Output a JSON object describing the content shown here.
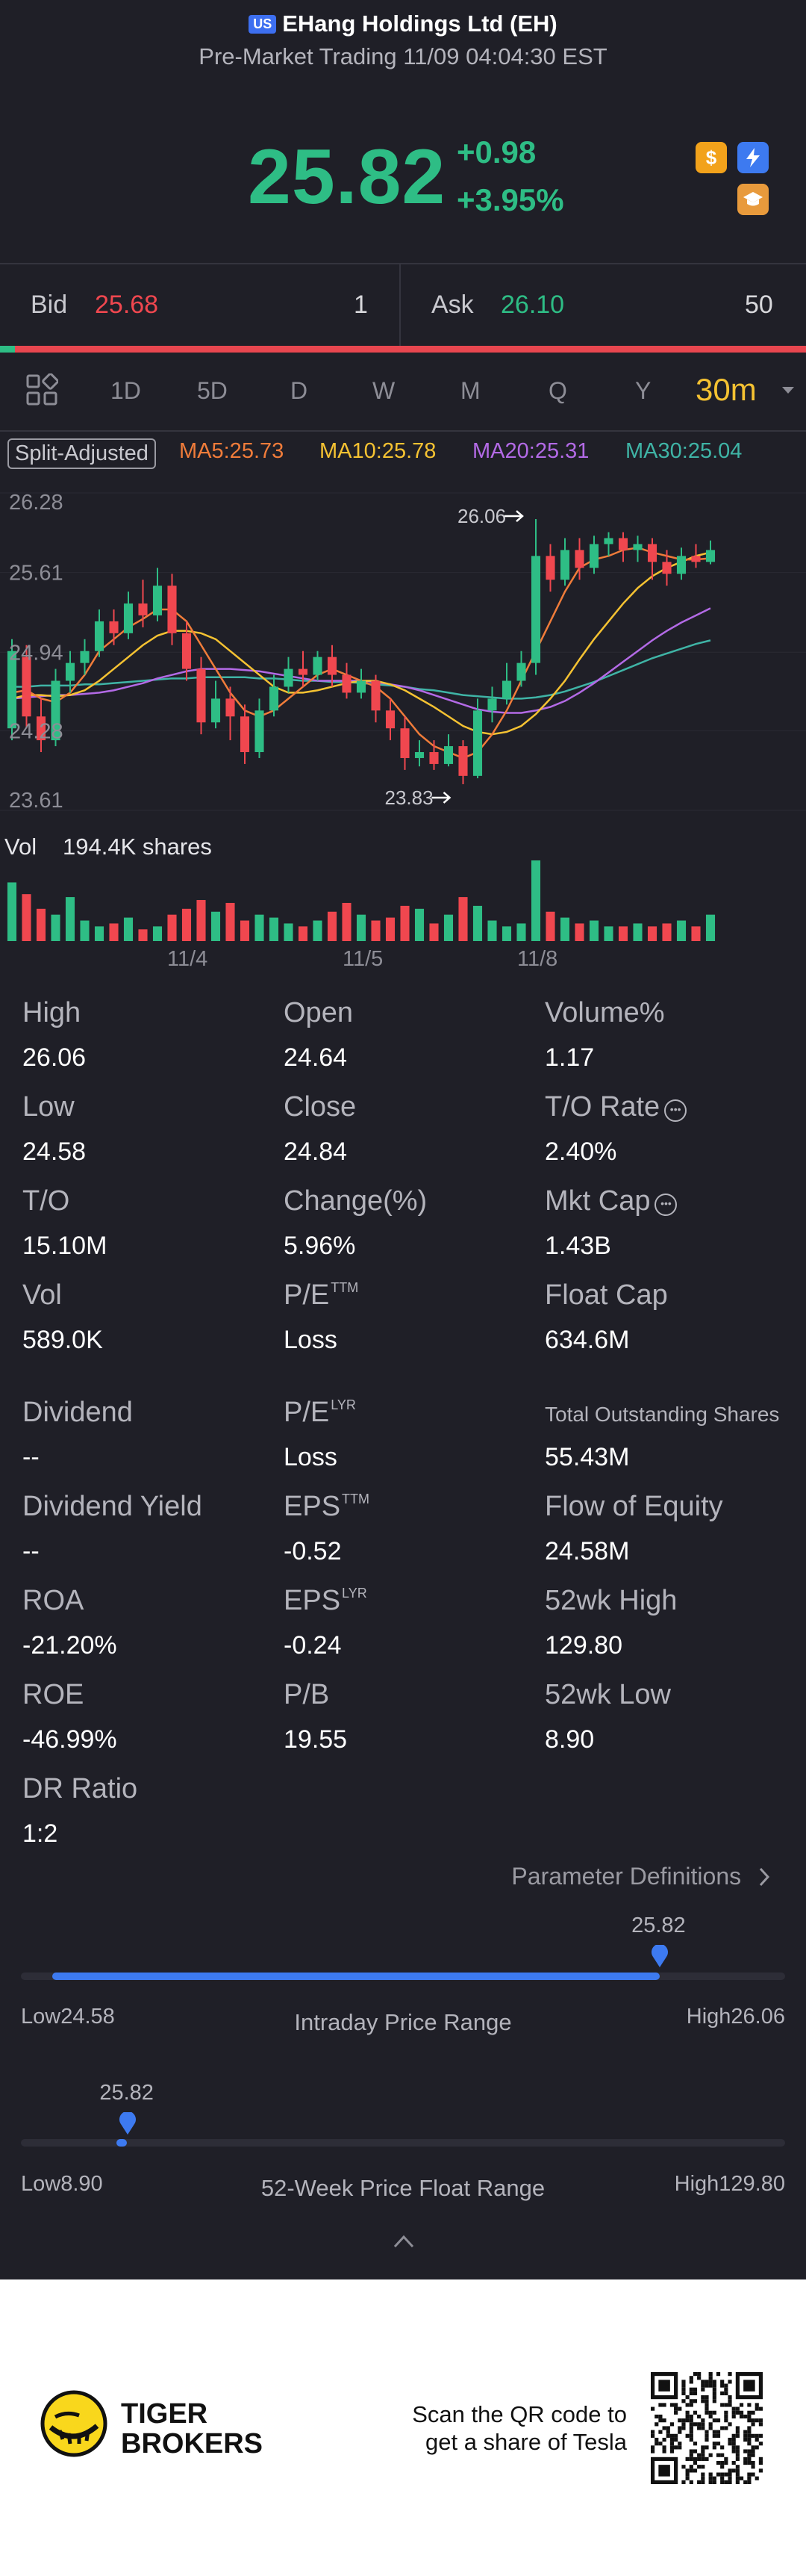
{
  "header": {
    "market_badge": "US",
    "title": "EHang Holdings Ltd (EH)",
    "subtitle": "Pre-Market Trading 11/09 04:04:30 EST"
  },
  "quote": {
    "price": "25.82",
    "change": "+0.98",
    "change_pct": "+3.95%",
    "up_color": "#2ebd85",
    "down_color": "#f0474f"
  },
  "badges": [
    {
      "icon": "dollar-icon",
      "glyph": "$",
      "color": "#f2a21b"
    },
    {
      "icon": "lightning-icon",
      "glyph": "⚡",
      "color": "#3d7af0"
    },
    {
      "icon": "education-icon",
      "glyph": "▲",
      "color": "#e89a3c"
    }
  ],
  "orderbook": {
    "bid_label": "Bid",
    "bid_price": "25.68",
    "bid_qty": "1",
    "ask_label": "Ask",
    "ask_price": "26.10",
    "ask_qty": "50"
  },
  "tabs": [
    "1D",
    "5D",
    "D",
    "W",
    "M",
    "Q",
    "Y"
  ],
  "active_tab": "30m",
  "chart_toolbar": {
    "split_label": "Split-Adjusted",
    "ma5": "MA5:25.73",
    "ma10": "MA10:25.78",
    "ma20": "MA20:25.31",
    "ma30": "MA30:25.04",
    "ma5_color": "#f07c3a",
    "ma10_color": "#f5c232",
    "ma20_color": "#b36ae6",
    "ma30_color": "#3fb4a6"
  },
  "chart_data": {
    "type": "candlestick",
    "y_ticks": [
      "26.28",
      "25.61",
      "24.94",
      "24.28",
      "23.61"
    ],
    "ylim": [
      23.61,
      26.28
    ],
    "x_ticks": [
      "11/4",
      "11/5",
      "11/8"
    ],
    "high_annotation": "26.06",
    "low_annotation": "23.83",
    "volume_label": "Vol",
    "volume_value": "194.4K shares",
    "candles": [
      {
        "o": 24.3,
        "c": 24.95,
        "h": 25.05,
        "l": 24.2
      },
      {
        "o": 24.9,
        "c": 24.4,
        "h": 25.0,
        "l": 24.3
      },
      {
        "o": 24.4,
        "c": 24.2,
        "h": 24.55,
        "l": 24.1
      },
      {
        "o": 24.2,
        "c": 24.7,
        "h": 24.8,
        "l": 24.15
      },
      {
        "o": 24.7,
        "c": 24.85,
        "h": 24.95,
        "l": 24.6
      },
      {
        "o": 24.85,
        "c": 24.95,
        "h": 25.05,
        "l": 24.75
      },
      {
        "o": 24.95,
        "c": 25.2,
        "h": 25.3,
        "l": 24.9
      },
      {
        "o": 25.2,
        "c": 25.1,
        "h": 25.3,
        "l": 25.0
      },
      {
        "o": 25.1,
        "c": 25.35,
        "h": 25.45,
        "l": 25.05
      },
      {
        "o": 25.35,
        "c": 25.25,
        "h": 25.55,
        "l": 25.15
      },
      {
        "o": 25.25,
        "c": 25.5,
        "h": 25.65,
        "l": 25.2
      },
      {
        "o": 25.5,
        "c": 25.1,
        "h": 25.6,
        "l": 25.0
      },
      {
        "o": 25.1,
        "c": 24.8,
        "h": 25.2,
        "l": 24.7
      },
      {
        "o": 24.8,
        "c": 24.35,
        "h": 24.9,
        "l": 24.25
      },
      {
        "o": 24.35,
        "c": 24.55,
        "h": 24.7,
        "l": 24.3
      },
      {
        "o": 24.55,
        "c": 24.4,
        "h": 24.65,
        "l": 24.2
      },
      {
        "o": 24.4,
        "c": 24.1,
        "h": 24.5,
        "l": 24.0
      },
      {
        "o": 24.1,
        "c": 24.45,
        "h": 24.55,
        "l": 24.05
      },
      {
        "o": 24.45,
        "c": 24.65,
        "h": 24.75,
        "l": 24.4
      },
      {
        "o": 24.65,
        "c": 24.8,
        "h": 24.9,
        "l": 24.6
      },
      {
        "o": 24.8,
        "c": 24.75,
        "h": 24.95,
        "l": 24.65
      },
      {
        "o": 24.75,
        "c": 24.9,
        "h": 24.95,
        "l": 24.7
      },
      {
        "o": 24.9,
        "c": 24.75,
        "h": 25.0,
        "l": 24.65
      },
      {
        "o": 24.75,
        "c": 24.6,
        "h": 24.85,
        "l": 24.55
      },
      {
        "o": 24.6,
        "c": 24.7,
        "h": 24.8,
        "l": 24.55
      },
      {
        "o": 24.7,
        "c": 24.45,
        "h": 24.75,
        "l": 24.35
      },
      {
        "o": 24.45,
        "c": 24.3,
        "h": 24.55,
        "l": 24.2
      },
      {
        "o": 24.3,
        "c": 24.05,
        "h": 24.4,
        "l": 23.95
      },
      {
        "o": 24.05,
        "c": 24.1,
        "h": 24.2,
        "l": 23.98
      },
      {
        "o": 24.1,
        "c": 24.0,
        "h": 24.2,
        "l": 23.95
      },
      {
        "o": 24.0,
        "c": 24.15,
        "h": 24.25,
        "l": 23.98
      },
      {
        "o": 24.15,
        "c": 23.9,
        "h": 24.2,
        "l": 23.83
      },
      {
        "o": 23.9,
        "c": 24.45,
        "h": 24.55,
        "l": 23.88
      },
      {
        "o": 24.45,
        "c": 24.55,
        "h": 24.65,
        "l": 24.35
      },
      {
        "o": 24.55,
        "c": 24.7,
        "h": 24.85,
        "l": 24.5
      },
      {
        "o": 24.7,
        "c": 24.85,
        "h": 24.95,
        "l": 24.65
      },
      {
        "o": 24.85,
        "c": 25.75,
        "h": 26.06,
        "l": 24.75
      },
      {
        "o": 25.75,
        "c": 25.55,
        "h": 25.85,
        "l": 25.45
      },
      {
        "o": 25.55,
        "c": 25.8,
        "h": 25.9,
        "l": 25.5
      },
      {
        "o": 25.8,
        "c": 25.65,
        "h": 25.9,
        "l": 25.55
      },
      {
        "o": 25.65,
        "c": 25.85,
        "h": 25.92,
        "l": 25.6
      },
      {
        "o": 25.85,
        "c": 25.9,
        "h": 25.95,
        "l": 25.75
      },
      {
        "o": 25.9,
        "c": 25.8,
        "h": 25.95,
        "l": 25.7
      },
      {
        "o": 25.8,
        "c": 25.85,
        "h": 25.92,
        "l": 25.7
      },
      {
        "o": 25.85,
        "c": 25.7,
        "h": 25.9,
        "l": 25.55
      },
      {
        "o": 25.7,
        "c": 25.6,
        "h": 25.8,
        "l": 25.5
      },
      {
        "o": 25.6,
        "c": 25.75,
        "h": 25.82,
        "l": 25.55
      },
      {
        "o": 25.75,
        "c": 25.7,
        "h": 25.85,
        "l": 25.65
      },
      {
        "o": 25.7,
        "c": 25.8,
        "h": 25.88,
        "l": 25.68
      }
    ],
    "ma5": [
      24.6,
      24.62,
      24.55,
      24.52,
      24.6,
      24.75,
      24.95,
      25.05,
      25.15,
      25.22,
      25.3,
      25.3,
      25.2,
      25.0,
      24.8,
      24.6,
      24.45,
      24.4,
      24.45,
      24.55,
      24.65,
      24.75,
      24.8,
      24.75,
      24.7,
      24.65,
      24.55,
      24.4,
      24.25,
      24.15,
      24.1,
      24.05,
      24.1,
      24.25,
      24.45,
      24.7,
      24.95,
      25.2,
      25.45,
      25.65,
      25.72,
      25.75,
      25.8,
      25.82,
      25.78,
      25.75,
      25.72,
      25.72,
      25.73
    ],
    "ma10": [
      24.55,
      24.58,
      24.58,
      24.57,
      24.58,
      24.62,
      24.7,
      24.8,
      24.9,
      25.0,
      25.08,
      25.12,
      25.12,
      25.1,
      25.05,
      24.95,
      24.85,
      24.75,
      24.65,
      24.6,
      24.6,
      24.62,
      24.65,
      24.68,
      24.7,
      24.7,
      24.67,
      24.62,
      24.55,
      24.48,
      24.4,
      24.32,
      24.27,
      24.25,
      24.27,
      24.32,
      24.42,
      24.55,
      24.7,
      24.88,
      25.05,
      25.2,
      25.35,
      25.48,
      25.58,
      25.65,
      25.7,
      25.75,
      25.78
    ],
    "ma20": [
      24.55,
      24.56,
      24.57,
      24.58,
      24.58,
      24.59,
      24.6,
      24.62,
      24.65,
      24.68,
      24.72,
      24.75,
      24.78,
      24.8,
      24.8,
      24.8,
      24.79,
      24.78,
      24.76,
      24.74,
      24.72,
      24.7,
      24.7,
      24.7,
      24.7,
      24.69,
      24.67,
      24.65,
      24.62,
      24.58,
      24.54,
      24.5,
      24.46,
      24.44,
      24.43,
      24.43,
      24.45,
      24.48,
      24.53,
      24.6,
      24.68,
      24.77,
      24.86,
      24.95,
      25.04,
      25.12,
      25.19,
      25.25,
      25.31
    ],
    "ma30": [
      24.65,
      24.65,
      24.66,
      24.66,
      24.66,
      24.67,
      24.67,
      24.68,
      24.69,
      24.7,
      24.71,
      24.72,
      24.72,
      24.73,
      24.73,
      24.73,
      24.73,
      24.72,
      24.72,
      24.71,
      24.7,
      24.7,
      24.69,
      24.69,
      24.68,
      24.67,
      24.66,
      24.65,
      24.63,
      24.62,
      24.6,
      24.58,
      24.57,
      24.56,
      24.55,
      24.55,
      24.56,
      24.58,
      24.61,
      24.65,
      24.69,
      24.74,
      24.79,
      24.84,
      24.89,
      24.93,
      24.97,
      25.01,
      25.04
    ],
    "volumes": [
      40,
      32,
      22,
      18,
      30,
      14,
      10,
      12,
      16,
      8,
      10,
      18,
      22,
      28,
      20,
      26,
      14,
      18,
      16,
      12,
      10,
      14,
      20,
      26,
      18,
      14,
      16,
      24,
      22,
      12,
      18,
      30,
      24,
      14,
      10,
      12,
      55,
      20,
      16,
      12,
      14,
      10,
      10,
      12,
      10,
      12,
      14,
      10,
      18
    ]
  },
  "stats": [
    {
      "label": "High",
      "value": "26.06"
    },
    {
      "label": "Open",
      "value": "24.64"
    },
    {
      "label": "Volume%",
      "value": "1.17"
    },
    {
      "label": "Low",
      "value": "24.58"
    },
    {
      "label": "Close",
      "value": "24.84"
    },
    {
      "label": "T/O Rate",
      "value": "2.40%"
    },
    {
      "label": "T/O",
      "value": "15.10M"
    },
    {
      "label": "Change(%)",
      "value": "5.96%"
    },
    {
      "label": "Mkt Cap",
      "value": "1.43B"
    },
    {
      "label": "Vol",
      "value": "589.0K"
    },
    {
      "label": "P/E",
      "sup": "TTM",
      "value": "Loss"
    },
    {
      "label": "Float Cap",
      "value": "634.6M"
    },
    {
      "label": "Dividend",
      "value": "--"
    },
    {
      "label": "P/E",
      "sup": "LYR",
      "value": "Loss"
    },
    {
      "label": "Total Outstanding Shares",
      "value": "55.43M"
    },
    {
      "label": "Dividend Yield",
      "value": "--"
    },
    {
      "label": "EPS",
      "sup": "TTM",
      "value": "-0.52"
    },
    {
      "label": "Flow of Equity",
      "value": "24.58M"
    },
    {
      "label": "ROA",
      "value": "-21.20%"
    },
    {
      "label": "EPS",
      "sup": "LYR",
      "value": "-0.24"
    },
    {
      "label": "52wk High",
      "value": "129.80"
    },
    {
      "label": "ROE",
      "value": "-46.99%"
    },
    {
      "label": "P/B",
      "value": "19.55"
    },
    {
      "label": "52wk Low",
      "value": "8.90"
    },
    {
      "label": "DR Ratio",
      "value": "1:2"
    }
  ],
  "param_def": "Parameter Definitions",
  "intraday_range": {
    "current": "25.82",
    "low_label": "Low",
    "low_value": "24.58",
    "high_label": "High",
    "high_value": "26.06",
    "title": "Intraday Price Range",
    "fill_fraction": 0.836
  },
  "week52_range": {
    "current": "25.82",
    "low_label": "Low",
    "low_value": "8.90",
    "high_label": "High",
    "high_value": "129.80",
    "title": "52-Week Price Float Range",
    "fill_fraction": 0.14
  },
  "footer": {
    "brand_line1": "TIGER",
    "brand_line2": "BROKERS",
    "scan_line1": "Scan the QR code to",
    "scan_line2": "get a share of Tesla"
  }
}
